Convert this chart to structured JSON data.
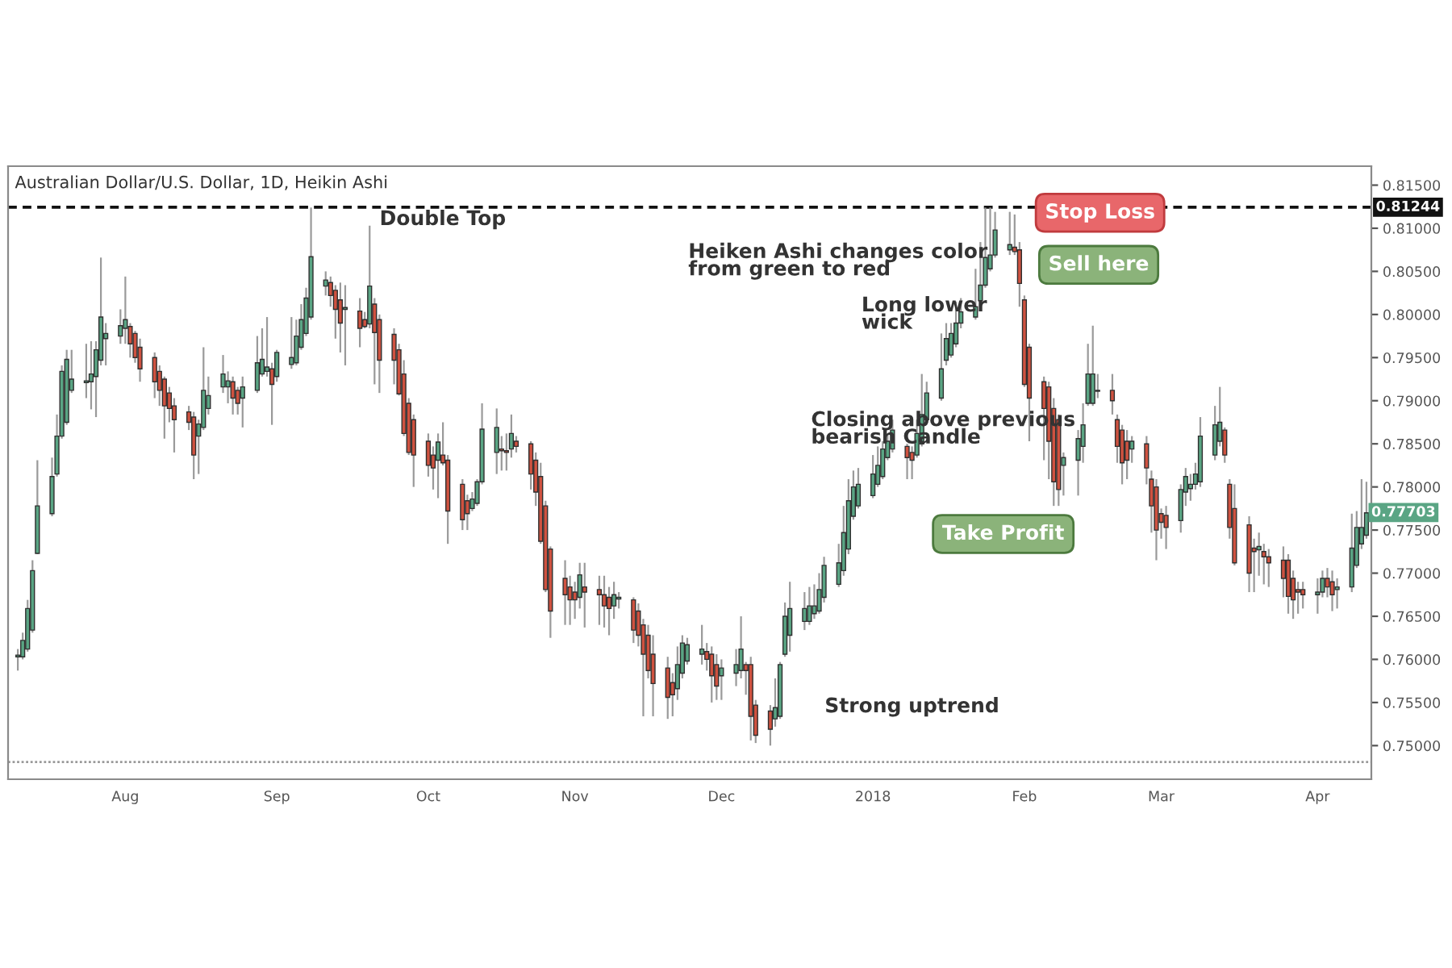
{
  "chart_data": {
    "type": "candlestick",
    "title": "Australian Dollar/U.S. Dollar, 1D, Heikin Ashi",
    "x": [
      "2017-07-10",
      "2017-07-11",
      "2017-07-12",
      "2017-07-13",
      "2017-07-14",
      "2017-07-17",
      "2017-07-18",
      "2017-07-19",
      "2017-07-20",
      "2017-07-21",
      "2017-07-24",
      "2017-07-25",
      "2017-07-26",
      "2017-07-27",
      "2017-07-28",
      "2017-07-31",
      "2017-08-01",
      "2017-08-02",
      "2017-08-03",
      "2017-08-04",
      "2017-08-07",
      "2017-08-08",
      "2017-08-09",
      "2017-08-10",
      "2017-08-11",
      "2017-08-14",
      "2017-08-15",
      "2017-08-16",
      "2017-08-17",
      "2017-08-18",
      "2017-08-21",
      "2017-08-22",
      "2017-08-23",
      "2017-08-24",
      "2017-08-25",
      "2017-08-28",
      "2017-08-29",
      "2017-08-30",
      "2017-08-31",
      "2017-09-01",
      "2017-09-04",
      "2017-09-05",
      "2017-09-06",
      "2017-09-07",
      "2017-09-08",
      "2017-09-11",
      "2017-09-12",
      "2017-09-13",
      "2017-09-14",
      "2017-09-15",
      "2017-09-18",
      "2017-09-19",
      "2017-09-20",
      "2017-09-21",
      "2017-09-22",
      "2017-09-25",
      "2017-09-26",
      "2017-09-27",
      "2017-09-28",
      "2017-09-29",
      "2017-10-02",
      "2017-10-03",
      "2017-10-04",
      "2017-10-05",
      "2017-10-06",
      "2017-10-09",
      "2017-10-10",
      "2017-10-11",
      "2017-10-12",
      "2017-10-13",
      "2017-10-16",
      "2017-10-17",
      "2017-10-18",
      "2017-10-19",
      "2017-10-20",
      "2017-10-23",
      "2017-10-24",
      "2017-10-25",
      "2017-10-26",
      "2017-10-27",
      "2017-10-30",
      "2017-10-31",
      "2017-11-01",
      "2017-11-02",
      "2017-11-03",
      "2017-11-06",
      "2017-11-07",
      "2017-11-08",
      "2017-11-09",
      "2017-11-10",
      "2017-11-13",
      "2017-11-14",
      "2017-11-15",
      "2017-11-16",
      "2017-11-17",
      "2017-11-20",
      "2017-11-21",
      "2017-11-22",
      "2017-11-23",
      "2017-11-24",
      "2017-11-27",
      "2017-11-28",
      "2017-11-29",
      "2017-11-30",
      "2017-12-01",
      "2017-12-04",
      "2017-12-05",
      "2017-12-06",
      "2017-12-07",
      "2017-12-08",
      "2017-12-11",
      "2017-12-12",
      "2017-12-13",
      "2017-12-14",
      "2017-12-15",
      "2017-12-18",
      "2017-12-19",
      "2017-12-20",
      "2017-12-21",
      "2017-12-22",
      "2017-12-25",
      "2017-12-26",
      "2017-12-27",
      "2017-12-28",
      "2017-12-29",
      "2018-01-01",
      "2018-01-02",
      "2018-01-03",
      "2018-01-04",
      "2018-01-05",
      "2018-01-08",
      "2018-01-09",
      "2018-01-10",
      "2018-01-11",
      "2018-01-12",
      "2018-01-15",
      "2018-01-16",
      "2018-01-17",
      "2018-01-18",
      "2018-01-19",
      "2018-01-22",
      "2018-01-23",
      "2018-01-24",
      "2018-01-25",
      "2018-01-26",
      "2018-01-29",
      "2018-01-30",
      "2018-01-31",
      "2018-02-01",
      "2018-02-02",
      "2018-02-05",
      "2018-02-06",
      "2018-02-07",
      "2018-02-08",
      "2018-02-09",
      "2018-02-12",
      "2018-02-13",
      "2018-02-14",
      "2018-02-15",
      "2018-02-16",
      "2018-02-19",
      "2018-02-20",
      "2018-02-21",
      "2018-02-22",
      "2018-02-23",
      "2018-02-26",
      "2018-02-27",
      "2018-02-28",
      "2018-03-01",
      "2018-03-02",
      "2018-03-05",
      "2018-03-06",
      "2018-03-07",
      "2018-03-08",
      "2018-03-09",
      "2018-03-12",
      "2018-03-13",
      "2018-03-14",
      "2018-03-15",
      "2018-03-16",
      "2018-03-19",
      "2018-03-20",
      "2018-03-21",
      "2018-03-22",
      "2018-03-23",
      "2018-03-26",
      "2018-03-27",
      "2018-03-28",
      "2018-03-29",
      "2018-03-30",
      "2018-04-02",
      "2018-04-03",
      "2018-04-04",
      "2018-04-05",
      "2018-04-06",
      "2018-04-09",
      "2018-04-10",
      "2018-04-11",
      "2018-04-12"
    ],
    "ohlc": [
      [
        0.7603,
        0.7612,
        0.7587,
        0.7605
      ],
      [
        0.7603,
        0.7631,
        0.76,
        0.7622
      ],
      [
        0.7612,
        0.7669,
        0.7609,
        0.7659
      ],
      [
        0.7634,
        0.7715,
        0.7631,
        0.7703
      ],
      [
        0.7723,
        0.7831,
        0.7722,
        0.7778
      ],
      [
        0.7769,
        0.7834,
        0.7766,
        0.7812
      ],
      [
        0.7815,
        0.7884,
        0.7812,
        0.7859
      ],
      [
        0.7859,
        0.7941,
        0.7856,
        0.7934
      ],
      [
        0.7875,
        0.7959,
        0.7872,
        0.7948
      ],
      [
        0.7912,
        0.7959,
        0.7909,
        0.7925
      ],
      [
        0.7921,
        0.7966,
        0.7903,
        0.7923
      ],
      [
        0.7922,
        0.7969,
        0.789,
        0.7931
      ],
      [
        0.7928,
        0.7969,
        0.7881,
        0.7959
      ],
      [
        0.7947,
        0.8066,
        0.7941,
        0.7997
      ],
      [
        0.7972,
        0.799,
        0.7941,
        0.7978
      ],
      [
        0.7975,
        0.8006,
        0.7966,
        0.7987
      ],
      [
        0.7984,
        0.8044,
        0.7966,
        0.7994
      ],
      [
        0.7986,
        0.799,
        0.795,
        0.7966
      ],
      [
        0.7978,
        0.7981,
        0.7944,
        0.795
      ],
      [
        0.7962,
        0.7972,
        0.7922,
        0.7937
      ],
      [
        0.795,
        0.7956,
        0.7903,
        0.7922
      ],
      [
        0.7934,
        0.7941,
        0.7894,
        0.7912
      ],
      [
        0.7925,
        0.7928,
        0.7856,
        0.7894
      ],
      [
        0.7909,
        0.7916,
        0.7875,
        0.7891
      ],
      [
        0.7894,
        0.7903,
        0.784,
        0.7878
      ],
      [
        0.7887,
        0.7894,
        0.7866,
        0.7875
      ],
      [
        0.7881,
        0.7887,
        0.7809,
        0.7837
      ],
      [
        0.7859,
        0.7878,
        0.7815,
        0.7873
      ],
      [
        0.7869,
        0.7962,
        0.7866,
        0.7912
      ],
      [
        0.7891,
        0.7928,
        0.7884,
        0.7906
      ],
      [
        0.7916,
        0.7953,
        0.7909,
        0.7931
      ],
      [
        0.7916,
        0.7934,
        0.7897,
        0.7923
      ],
      [
        0.7922,
        0.7928,
        0.7884,
        0.7903
      ],
      [
        0.7912,
        0.7916,
        0.7884,
        0.7897
      ],
      [
        0.7903,
        0.7928,
        0.7869,
        0.7916
      ],
      [
        0.7912,
        0.7975,
        0.7909,
        0.7944
      ],
      [
        0.7931,
        0.7984,
        0.7928,
        0.7948
      ],
      [
        0.7934,
        0.7997,
        0.7928,
        0.7939
      ],
      [
        0.7937,
        0.7944,
        0.7872,
        0.7919
      ],
      [
        0.7928,
        0.7959,
        0.7922,
        0.7956
      ],
      [
        0.7942,
        0.7997,
        0.7937,
        0.795
      ],
      [
        0.7944,
        0.7994,
        0.7941,
        0.7975
      ],
      [
        0.7962,
        0.8012,
        0.7959,
        0.7994
      ],
      [
        0.7978,
        0.8031,
        0.7975,
        0.8019
      ],
      [
        0.7997,
        0.8124,
        0.7994,
        0.8067
      ],
      [
        0.8033,
        0.805,
        0.8022,
        0.804
      ],
      [
        0.8037,
        0.8044,
        0.8009,
        0.8022
      ],
      [
        0.8028,
        0.8034,
        0.7972,
        0.8006
      ],
      [
        0.8017,
        0.8037,
        0.7956,
        0.799
      ],
      [
        0.8006,
        0.8034,
        0.7941,
        0.8008
      ],
      [
        0.8004,
        0.8019,
        0.7962,
        0.7984
      ],
      [
        0.7994,
        0.8003,
        0.7984,
        0.7986
      ],
      [
        0.7989,
        0.8103,
        0.7984,
        0.8033
      ],
      [
        0.8012,
        0.8019,
        0.7919,
        0.7979
      ],
      [
        0.7994,
        0.8,
        0.7909,
        0.7947
      ],
      [
        0.7977,
        0.7984,
        0.7919,
        0.7947
      ],
      [
        0.7959,
        0.7966,
        0.7906,
        0.7908
      ],
      [
        0.7931,
        0.7947,
        0.7859,
        0.7862
      ],
      [
        0.7897,
        0.7903,
        0.7837,
        0.784
      ],
      [
        0.7878,
        0.7884,
        0.78,
        0.7837
      ],
      [
        0.7853,
        0.7862,
        0.7812,
        0.7825
      ],
      [
        0.7837,
        0.7847,
        0.7797,
        0.7822
      ],
      [
        0.7831,
        0.7862,
        0.7787,
        0.7852
      ],
      [
        0.7837,
        0.7875,
        0.7825,
        0.7828
      ],
      [
        0.7831,
        0.7837,
        0.7734,
        0.7772
      ],
      [
        0.7803,
        0.7809,
        0.775,
        0.7762
      ],
      [
        0.7784,
        0.7791,
        0.775,
        0.7769
      ],
      [
        0.7775,
        0.7794,
        0.7772,
        0.7786
      ],
      [
        0.7781,
        0.7809,
        0.7778,
        0.7806
      ],
      [
        0.7806,
        0.7897,
        0.7803,
        0.7867
      ],
      [
        0.784,
        0.7891,
        0.7815,
        0.7869
      ],
      [
        0.7844,
        0.7859,
        0.7819,
        0.7842
      ],
      [
        0.7842,
        0.7862,
        0.7819,
        0.784
      ],
      [
        0.7844,
        0.7884,
        0.7834,
        0.7862
      ],
      [
        0.7853,
        0.7859,
        0.784,
        0.7847
      ],
      [
        0.785,
        0.7853,
        0.7797,
        0.7815
      ],
      [
        0.7831,
        0.784,
        0.7778,
        0.7794
      ],
      [
        0.7812,
        0.7828,
        0.7734,
        0.7737
      ],
      [
        0.7778,
        0.7784,
        0.7678,
        0.7681
      ],
      [
        0.7728,
        0.7731,
        0.7625,
        0.7656
      ],
      [
        0.7694,
        0.7715,
        0.764,
        0.7675
      ],
      [
        0.7684,
        0.7697,
        0.764,
        0.7669
      ],
      [
        0.7678,
        0.769,
        0.7647,
        0.7669
      ],
      [
        0.7672,
        0.7712,
        0.7659,
        0.7698
      ],
      [
        0.7684,
        0.7712,
        0.7637,
        0.7678
      ],
      [
        0.7681,
        0.7697,
        0.764,
        0.7675
      ],
      [
        0.7675,
        0.7697,
        0.7637,
        0.7662
      ],
      [
        0.7672,
        0.7684,
        0.7628,
        0.7659
      ],
      [
        0.7662,
        0.769,
        0.7647,
        0.7675
      ],
      [
        0.767,
        0.7678,
        0.7659,
        0.7672
      ],
      [
        0.7669,
        0.7672,
        0.7619,
        0.7634
      ],
      [
        0.7656,
        0.7665,
        0.7615,
        0.7628
      ],
      [
        0.764,
        0.7647,
        0.7534,
        0.7606
      ],
      [
        0.7628,
        0.764,
        0.7578,
        0.7587
      ],
      [
        0.7606,
        0.7628,
        0.7534,
        0.7572
      ],
      [
        0.759,
        0.7603,
        0.7531,
        0.7556
      ],
      [
        0.7573,
        0.7584,
        0.7534,
        0.7559
      ],
      [
        0.7566,
        0.7615,
        0.7553,
        0.7594
      ],
      [
        0.7584,
        0.7628,
        0.7578,
        0.7619
      ],
      [
        0.7598,
        0.7625,
        0.7594,
        0.7617
      ],
      [
        0.7606,
        0.764,
        0.7594,
        0.7612
      ],
      [
        0.7609,
        0.7619,
        0.7587,
        0.76
      ],
      [
        0.7606,
        0.7615,
        0.755,
        0.7581
      ],
      [
        0.7594,
        0.7606,
        0.7553,
        0.7569
      ],
      [
        0.7581,
        0.76,
        0.7553,
        0.759
      ],
      [
        0.7584,
        0.7612,
        0.7569,
        0.7594
      ],
      [
        0.7587,
        0.765,
        0.7578,
        0.7612
      ],
      [
        0.7594,
        0.7597,
        0.7559,
        0.7587
      ],
      [
        0.7594,
        0.7603,
        0.7506,
        0.7534
      ],
      [
        0.7547,
        0.7553,
        0.7503,
        0.7512
      ],
      [
        0.754,
        0.7547,
        0.75,
        0.7519
      ],
      [
        0.7531,
        0.7578,
        0.7522,
        0.7544
      ],
      [
        0.7534,
        0.7597,
        0.7531,
        0.7594
      ],
      [
        0.7606,
        0.7666,
        0.7603,
        0.765
      ],
      [
        0.7628,
        0.769,
        0.7609,
        0.7659
      ],
      [
        0.7644,
        0.7678,
        0.7634,
        0.7659
      ],
      [
        0.7644,
        0.7684,
        0.764,
        0.7662
      ],
      [
        0.7653,
        0.7687,
        0.7647,
        0.7662
      ],
      [
        0.7656,
        0.77,
        0.7653,
        0.7681
      ],
      [
        0.7672,
        0.7719,
        0.7666,
        0.7709
      ],
      [
        0.7687,
        0.7734,
        0.7684,
        0.7712
      ],
      [
        0.7703,
        0.7778,
        0.7697,
        0.7747
      ],
      [
        0.7728,
        0.7809,
        0.7722,
        0.7784
      ],
      [
        0.7766,
        0.7819,
        0.7762,
        0.78
      ],
      [
        0.7778,
        0.7822,
        0.7775,
        0.7803
      ],
      [
        0.779,
        0.7837,
        0.7787,
        0.7815
      ],
      [
        0.7803,
        0.7847,
        0.78,
        0.7825
      ],
      [
        0.7812,
        0.7853,
        0.7809,
        0.7844
      ],
      [
        0.7834,
        0.7862,
        0.7831,
        0.7853
      ],
      [
        0.7844,
        0.7878,
        0.784,
        0.7866
      ],
      [
        0.7847,
        0.785,
        0.7809,
        0.7834
      ],
      [
        0.784,
        0.7847,
        0.7809,
        0.7831
      ],
      [
        0.7837,
        0.7878,
        0.7834,
        0.7862
      ],
      [
        0.785,
        0.7931,
        0.7847,
        0.7884
      ],
      [
        0.7878,
        0.7922,
        0.7875,
        0.7909
      ],
      [
        0.7903,
        0.7978,
        0.79,
        0.7937
      ],
      [
        0.7947,
        0.799,
        0.7941,
        0.7972
      ],
      [
        0.7953,
        0.799,
        0.795,
        0.7978
      ],
      [
        0.7966,
        0.8015,
        0.7962,
        0.799
      ],
      [
        0.799,
        0.8019,
        0.7984,
        0.8003
      ],
      [
        0.7997,
        0.8053,
        0.7994,
        0.8009
      ],
      [
        0.8016,
        0.8084,
        0.8012,
        0.8034
      ],
      [
        0.8034,
        0.8124,
        0.8031,
        0.8066
      ],
      [
        0.8053,
        0.8124,
        0.805,
        0.8069
      ],
      [
        0.8069,
        0.8119,
        0.8066,
        0.8098
      ],
      [
        0.8075,
        0.8119,
        0.8069,
        0.8081
      ],
      [
        0.8078,
        0.8116,
        0.8069,
        0.8073
      ],
      [
        0.8075,
        0.8084,
        0.8009,
        0.8036
      ],
      [
        0.8017,
        0.8022,
        0.7916,
        0.7919
      ],
      [
        0.7962,
        0.7966,
        0.7853,
        0.7903
      ],
      [
        0.7922,
        0.7928,
        0.7831,
        0.7891
      ],
      [
        0.7916,
        0.7922,
        0.7809,
        0.7853
      ],
      [
        0.7891,
        0.7903,
        0.7778,
        0.7806
      ],
      [
        0.7878,
        0.7884,
        0.7778,
        0.7797
      ],
      [
        0.7825,
        0.784,
        0.779,
        0.7834
      ],
      [
        0.7831,
        0.7866,
        0.779,
        0.7856
      ],
      [
        0.7847,
        0.7897,
        0.7828,
        0.7872
      ],
      [
        0.7897,
        0.7966,
        0.7894,
        0.7931
      ],
      [
        0.7897,
        0.7987,
        0.7894,
        0.7931
      ],
      [
        0.7911,
        0.7931,
        0.7903,
        0.7912
      ],
      [
        0.7912,
        0.7931,
        0.7884,
        0.79
      ],
      [
        0.7878,
        0.7884,
        0.7828,
        0.7847
      ],
      [
        0.7866,
        0.7872,
        0.7803,
        0.7828
      ],
      [
        0.7853,
        0.7866,
        0.7809,
        0.7831
      ],
      [
        0.7844,
        0.7859,
        0.7828,
        0.7853
      ],
      [
        0.785,
        0.7859,
        0.7803,
        0.7822
      ],
      [
        0.7809,
        0.7819,
        0.7747,
        0.7778
      ],
      [
        0.78,
        0.7809,
        0.7715,
        0.775
      ],
      [
        0.7769,
        0.7775,
        0.774,
        0.7759
      ],
      [
        0.7767,
        0.7778,
        0.7728,
        0.7753
      ],
      [
        0.7761,
        0.7803,
        0.7747,
        0.7797
      ],
      [
        0.7794,
        0.7822,
        0.7778,
        0.7812
      ],
      [
        0.7798,
        0.7815,
        0.7784,
        0.7803
      ],
      [
        0.7803,
        0.7828,
        0.7797,
        0.7815
      ],
      [
        0.7806,
        0.7881,
        0.78,
        0.7859
      ],
      [
        0.7837,
        0.7894,
        0.7831,
        0.7872
      ],
      [
        0.7853,
        0.7916,
        0.7847,
        0.7875
      ],
      [
        0.7866,
        0.7869,
        0.7828,
        0.7837
      ],
      [
        0.7803,
        0.7809,
        0.774,
        0.7753
      ],
      [
        0.7775,
        0.7803,
        0.7709,
        0.7712
      ],
      [
        0.7756,
        0.7766,
        0.7678,
        0.77
      ],
      [
        0.7729,
        0.774,
        0.7678,
        0.7725
      ],
      [
        0.7727,
        0.7747,
        0.7697,
        0.7731
      ],
      [
        0.7725,
        0.7734,
        0.7687,
        0.7719
      ],
      [
        0.7719,
        0.7728,
        0.7684,
        0.7712
      ],
      [
        0.7715,
        0.7731,
        0.7672,
        0.7694
      ],
      [
        0.7715,
        0.7722,
        0.7653,
        0.7673
      ],
      [
        0.7694,
        0.7703,
        0.7647,
        0.7669
      ],
      [
        0.7681,
        0.769,
        0.7653,
        0.7678
      ],
      [
        0.7681,
        0.769,
        0.7659,
        0.7675
      ],
      [
        0.7675,
        0.7694,
        0.7653,
        0.7678
      ],
      [
        0.7678,
        0.7703,
        0.7672,
        0.7694
      ],
      [
        0.7694,
        0.7706,
        0.7672,
        0.7684
      ],
      [
        0.769,
        0.7703,
        0.7656,
        0.7675
      ],
      [
        0.7681,
        0.7694,
        0.7659,
        0.7684
      ],
      [
        0.7684,
        0.7769,
        0.7678,
        0.7729
      ],
      [
        0.7709,
        0.7772,
        0.7706,
        0.7753
      ],
      [
        0.7734,
        0.7809,
        0.7728,
        0.7753
      ],
      [
        0.7744,
        0.7806,
        0.774,
        0.777
      ]
    ],
    "xlim": [
      "2017-07-08",
      "2018-04-13"
    ],
    "xticks": [
      {
        "value": "2017-08-01",
        "label": "Aug"
      },
      {
        "value": "2017-09-01",
        "label": "Sep"
      },
      {
        "value": "2017-10-02",
        "label": "Oct"
      },
      {
        "value": "2017-11-01",
        "label": "Nov"
      },
      {
        "value": "2017-12-01",
        "label": "Dec"
      },
      {
        "value": "2018-01-01",
        "label": "2018"
      },
      {
        "value": "2018-02-01",
        "label": "Feb"
      },
      {
        "value": "2018-03-01",
        "label": "Mar"
      },
      {
        "value": "2018-04-02",
        "label": "Apr"
      }
    ],
    "ylim": [
      0.7461,
      0.8172
    ],
    "yticks": [
      {
        "value": 0.75,
        "label": "0.75000"
      },
      {
        "value": 0.755,
        "label": "0.75500"
      },
      {
        "value": 0.76,
        "label": "0.76000"
      },
      {
        "value": 0.765,
        "label": "0.76500"
      },
      {
        "value": 0.77,
        "label": "0.77000"
      },
      {
        "value": 0.775,
        "label": "0.77500"
      },
      {
        "value": 0.78,
        "label": "0.78000"
      },
      {
        "value": 0.785,
        "label": "0.78500"
      },
      {
        "value": 0.79,
        "label": "0.79000"
      },
      {
        "value": 0.795,
        "label": "0.79500"
      },
      {
        "value": 0.8,
        "label": "0.80000"
      },
      {
        "value": 0.805,
        "label": "0.80500"
      },
      {
        "value": 0.81,
        "label": "0.81000"
      },
      {
        "value": 0.815,
        "label": "0.81500"
      }
    ],
    "ref_lines": [
      {
        "axis": "y",
        "value": 0.81244,
        "label": "0.81244",
        "color": "#111111",
        "line_style": "dashed"
      },
      {
        "axis": "y",
        "value": 0.7481,
        "color": "#999999",
        "line_style": "dotted"
      }
    ],
    "annotations": [
      "Double Top",
      "Heiken Ashi changes color\nfrom green to red",
      "Long lower\nwick",
      "Closing above previous\nbearish Candle",
      "Strong uptrend",
      "Stop Loss",
      "Sell here",
      "Take Profit",
      {
        "text": "0.77703",
        "x": "2018-04-12",
        "y": 0.77703
      }
    ],
    "grid": false
  }
}
